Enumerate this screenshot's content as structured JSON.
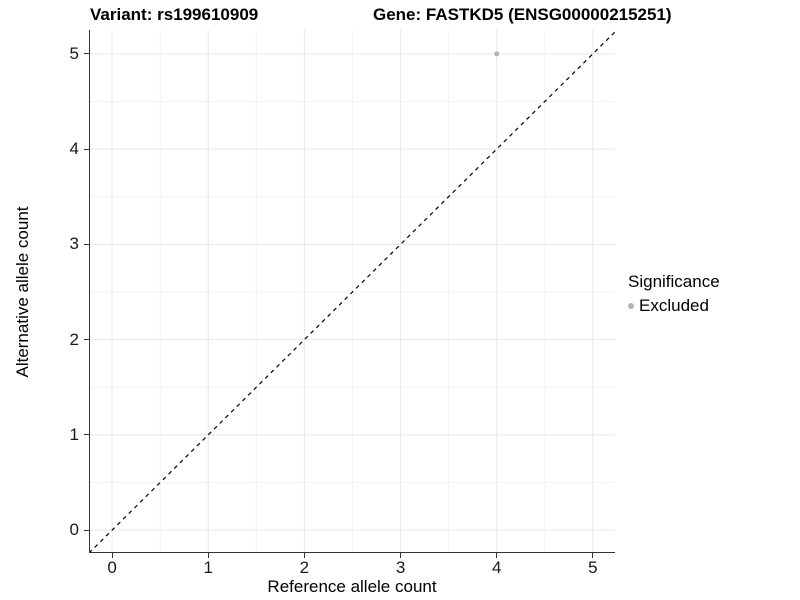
{
  "figure": {
    "title_left": "Variant: rs199610909",
    "title_right": "Gene: FASTKD5 (ENSG00000215251)"
  },
  "legend": {
    "title": "Significance",
    "items": [
      {
        "label": "Excluded",
        "color": "#b4b4b4"
      }
    ]
  },
  "chart_data": {
    "type": "scatter",
    "title_left": "Variant: rs199610909",
    "title_right": "Gene: FASTKD5 (ENSG00000215251)",
    "xlabel": "Reference allele count",
    "ylabel": "Alternative allele count",
    "x_ticks": [
      0,
      1,
      2,
      3,
      4,
      5
    ],
    "y_ticks": [
      0,
      1,
      2,
      3,
      4,
      5
    ],
    "x_minor": [
      0.5,
      1.5,
      2.5,
      3.5,
      4.5
    ],
    "y_minor": [
      0.5,
      1.5,
      2.5,
      3.5,
      4.5
    ],
    "xlim": [
      -0.24,
      5.23
    ],
    "ylim": [
      -0.24,
      5.25
    ],
    "grid": true,
    "legend_position": "right",
    "legend_title": "Significance",
    "series": [
      {
        "name": "Excluded",
        "color": "#b4b4b4",
        "point_radius": 2.5,
        "points": [
          {
            "x": 4,
            "y": 5
          }
        ]
      }
    ],
    "reference_line": {
      "type": "identity",
      "style": "dashed",
      "color": "#000000",
      "width": 1.2,
      "dash": "4 4"
    },
    "colors": {
      "grid_major": "#e8e8e8",
      "grid_minor": "#f3f3f3",
      "axis": "#333333",
      "background": "#ffffff"
    }
  }
}
